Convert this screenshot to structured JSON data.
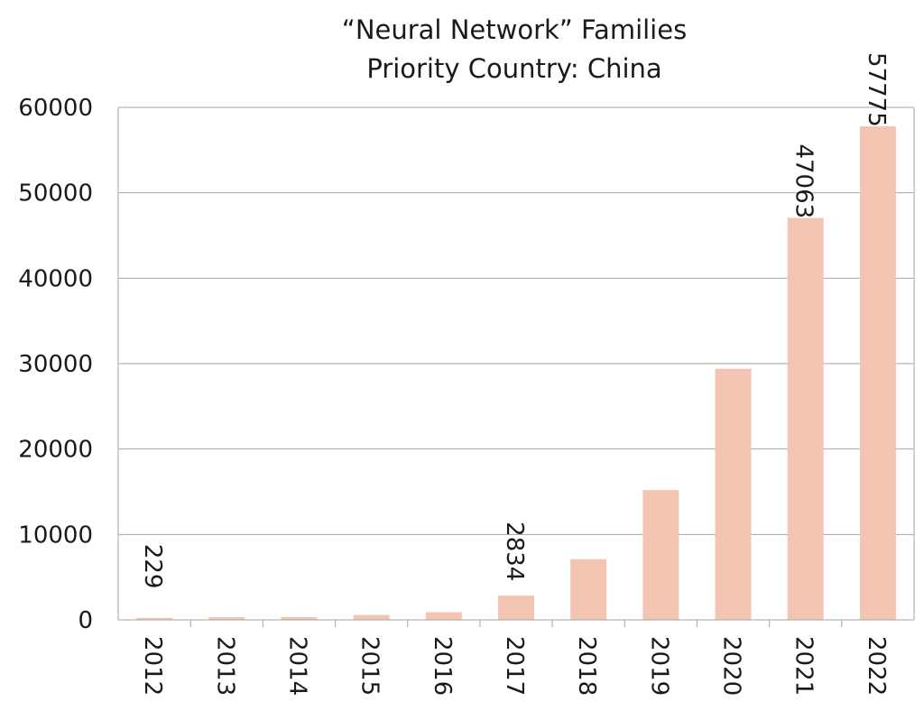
{
  "chart_data": {
    "type": "bar",
    "title": "“Neural Network” Families",
    "subtitle": "Priority Country: China",
    "categories": [
      "2012",
      "2013",
      "2014",
      "2015",
      "2016",
      "2017",
      "2018",
      "2019",
      "2020",
      "2021",
      "2022"
    ],
    "values": [
      229,
      310,
      330,
      580,
      900,
      2834,
      7100,
      15200,
      29400,
      47063,
      57775
    ],
    "data_labels": {
      "2012": "229",
      "2017": "2834",
      "2021": "47063",
      "2022": "57775"
    },
    "yticks": [
      "0",
      "10000",
      "20000",
      "30000",
      "40000",
      "50000",
      "60000"
    ],
    "ylim": [
      0,
      60000
    ],
    "xlabel": "",
    "ylabel": "",
    "grid": true,
    "bar_color": "#f3c4b2",
    "grid_color": "#a6a6a6"
  }
}
